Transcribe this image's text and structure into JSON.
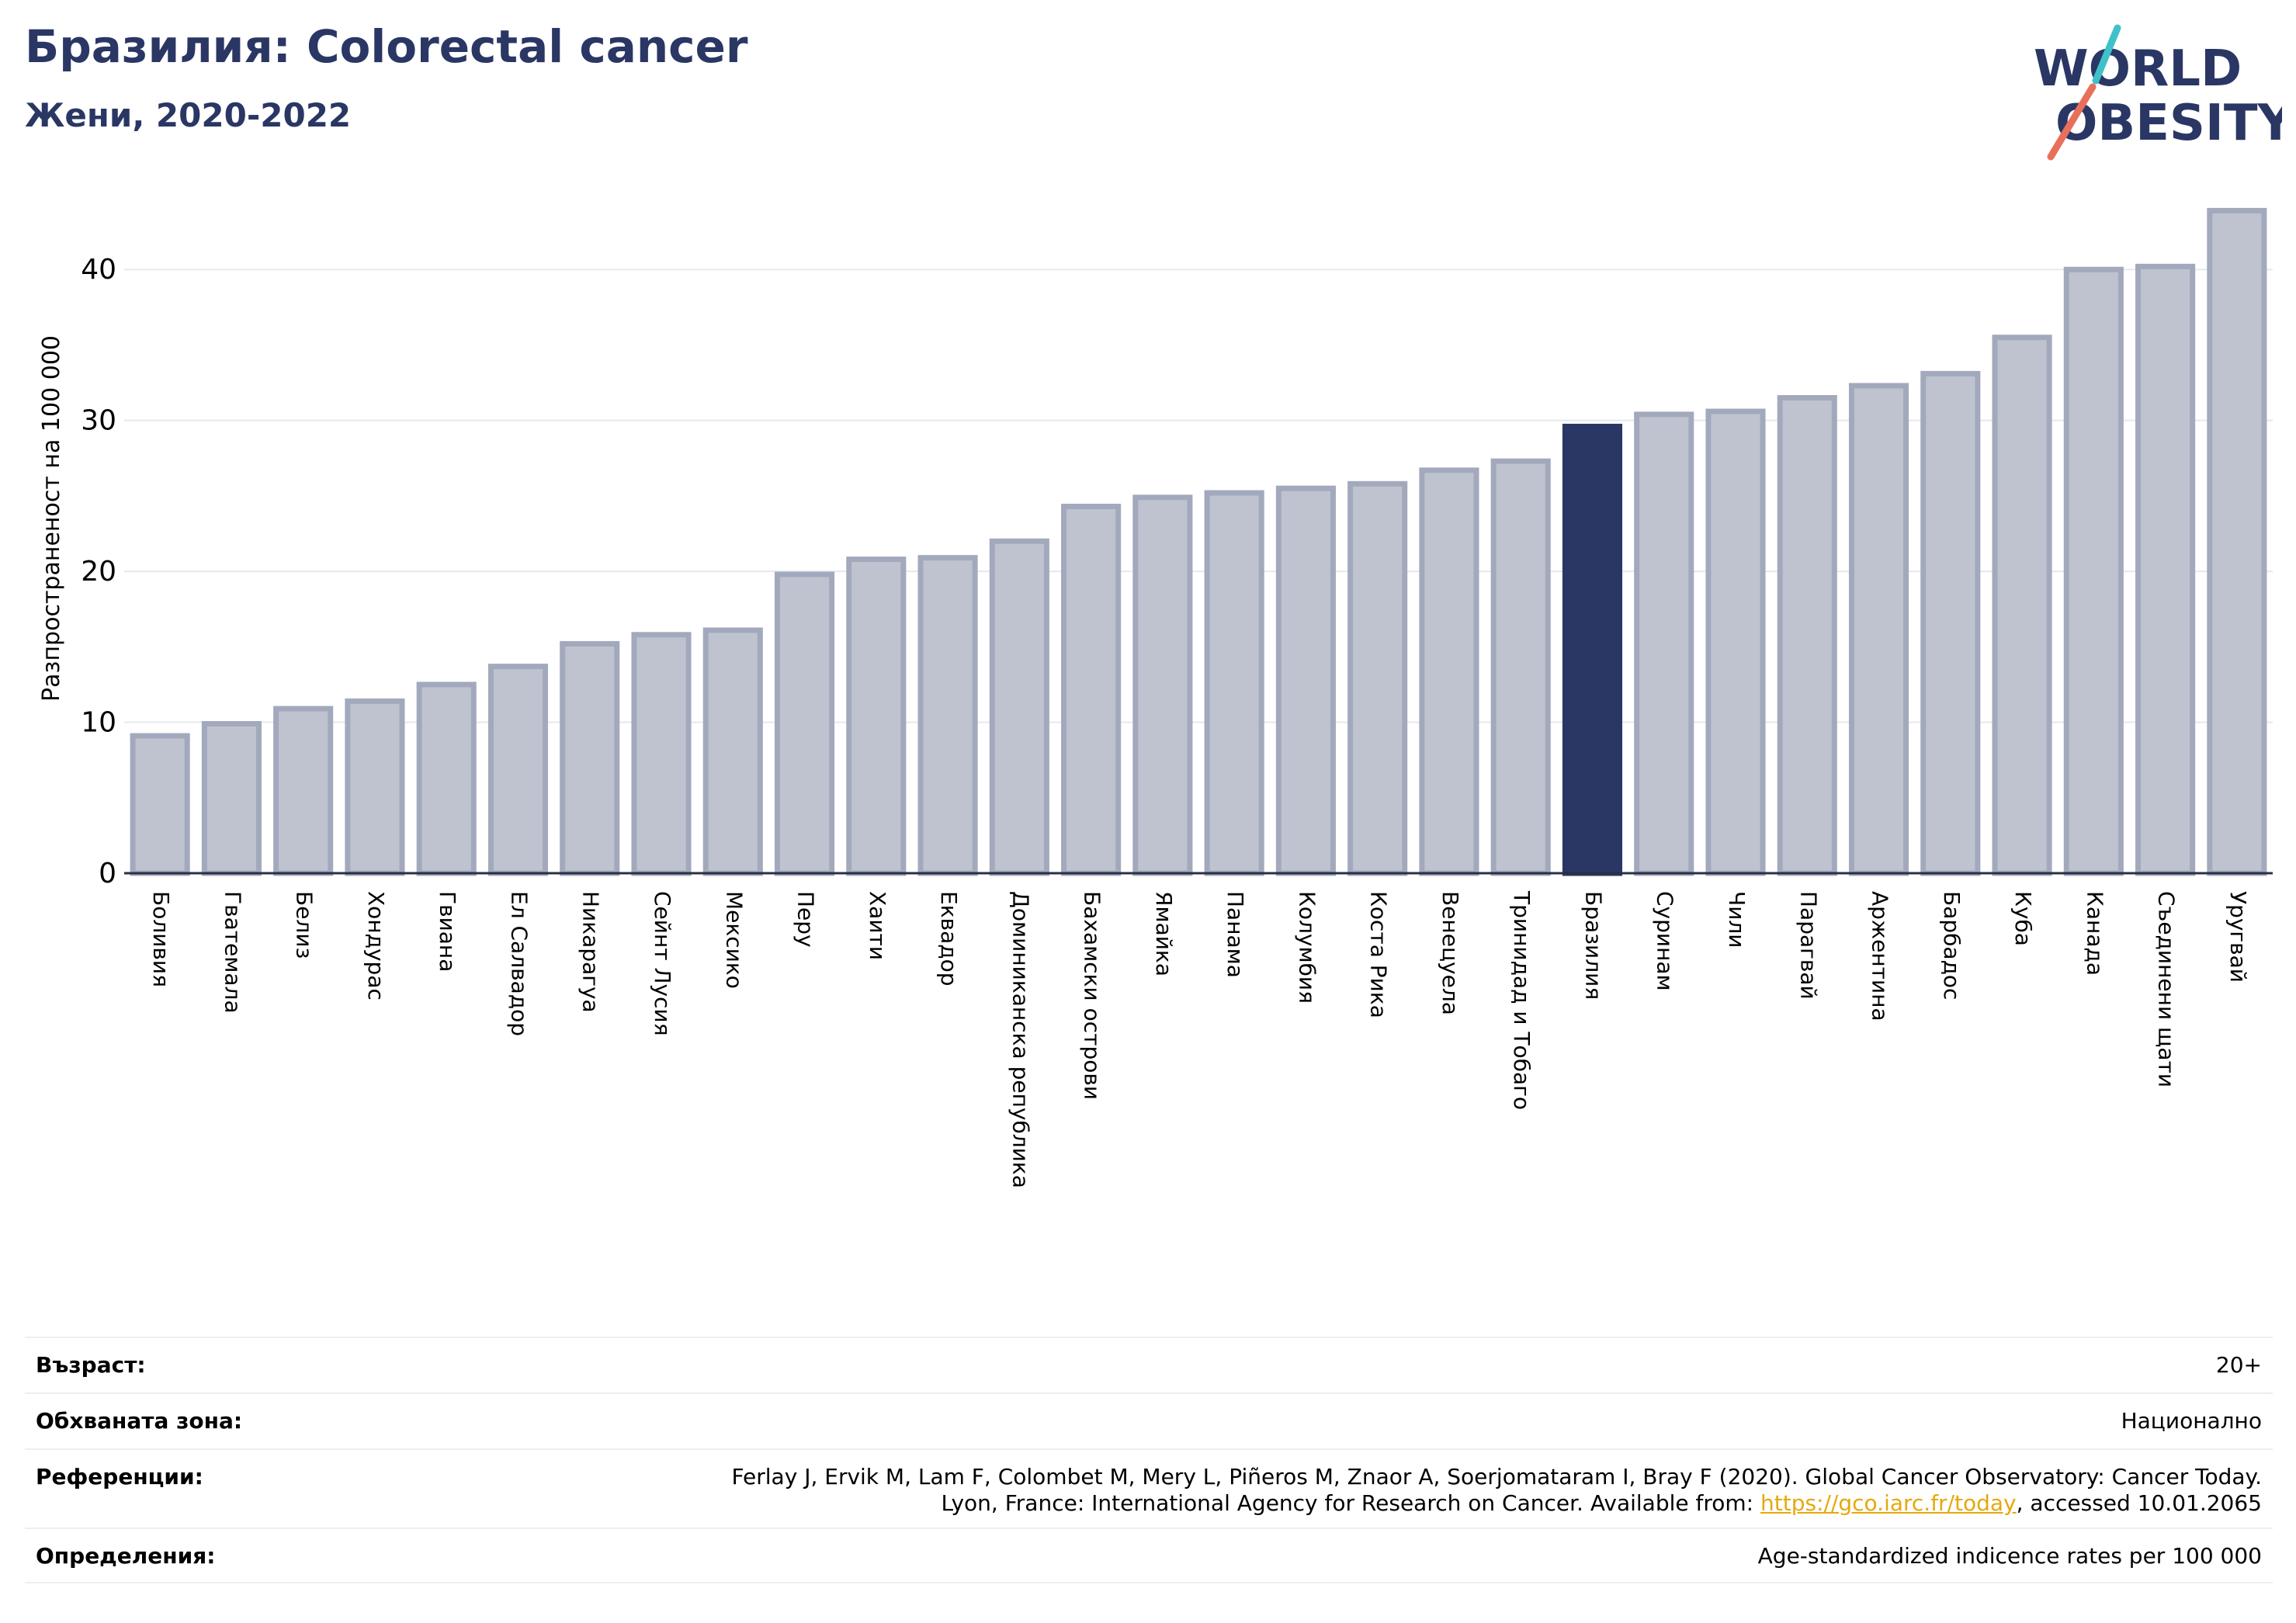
{
  "header": {
    "title": "Бразилия: Colorectal cancer",
    "subtitle": "Жени, 2020-2022"
  },
  "logo": {
    "line1": "WORLD",
    "line2": "OBESITY",
    "text_color": "#2a3764",
    "slash_colors": [
      "#e8705a",
      "#3fc1c9"
    ]
  },
  "chart_data": {
    "type": "bar",
    "ylabel": "Разпространеност  на 100 000",
    "ylim": [
      0,
      45
    ],
    "yticks": [
      0,
      10,
      20,
      30,
      40
    ],
    "grid": true,
    "highlight": "Бразилия",
    "colors": {
      "bar": "#bfc3d0",
      "bar_border": "#a3a9bd",
      "highlight": "#2a3764",
      "grid": "#e6e8ee",
      "axis": "#2a2f45"
    },
    "categories": [
      "Боливия",
      "Гватемала",
      "Белиз",
      "Хондурас",
      "Гвиана",
      "Ел Салвадор",
      "Никарагуа",
      "Сейнт Лусия",
      "Мексико",
      "Перу",
      "Хаити",
      "Еквадор",
      "Доминиканска република",
      "Бахамски острови",
      "Ямайка",
      "Панама",
      "Колумбия",
      "Коста Рика",
      "Венецуела",
      "Тринидад и Тобаго",
      "Бразилия",
      "Суринам",
      "Чили",
      "Парагвай",
      "Аржентина",
      "Барбадос",
      "Куба",
      "Канада",
      "Съединени щати",
      "Уругвай"
    ],
    "values": [
      9.1,
      9.9,
      10.9,
      11.4,
      12.5,
      13.7,
      15.2,
      15.8,
      16.1,
      19.8,
      20.8,
      20.9,
      22.0,
      24.3,
      24.9,
      25.2,
      25.5,
      25.8,
      26.7,
      27.3,
      29.6,
      30.4,
      30.6,
      31.5,
      32.3,
      33.1,
      35.5,
      40.0,
      40.2,
      43.9
    ]
  },
  "info": {
    "age_label": "Възраст:",
    "age_value": "20+",
    "area_label": "Обхваната зона:",
    "area_value": "Национално",
    "refs_label": "Референции:",
    "refs_line1": "Ferlay J, Ervik M, Lam F, Colombet M, Mery L, Piñeros M, Znaor A, Soerjomataram I, Bray F (2020). Global Cancer Observatory: Cancer Today.",
    "refs_line2_prefix": "Lyon, France: International Agency for Research on Cancer. Available from: ",
    "refs_link": "https://gco.iarc.fr/today",
    "refs_line2_suffix": ", accessed 10.01.2065",
    "defs_label": "Определения:",
    "defs_value": "Age-standardized indicence rates per 100 000"
  }
}
